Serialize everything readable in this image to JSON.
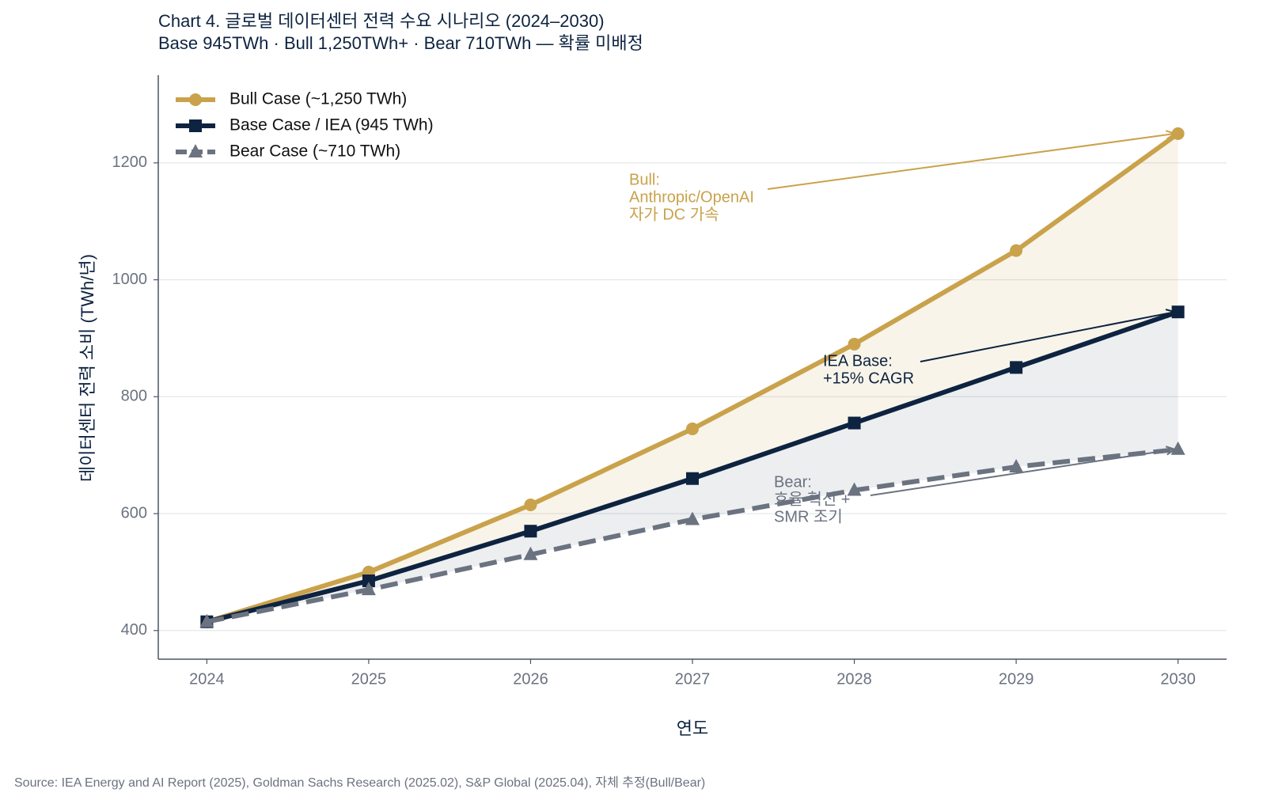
{
  "chart_data": {
    "type": "line",
    "title": "Chart 4. 글로벌 데이터센터 전력 수요 시나리오 (2024–2030)",
    "subtitle": "Base 945TWh · Bull 1,250TWh+ · Bear 710TWh — 확률 미배정",
    "x_label": "연도",
    "y_label": "데이터센터 전력 소비 (TWh/년)",
    "source": "Source: IEA Energy and AI Report (2025), Goldman Sachs Research (2025.02), S&P Global (2025.04), 자체 추정(Bull/Bear)",
    "x": [
      2024,
      2025,
      2026,
      2027,
      2028,
      2029,
      2030
    ],
    "xlim": [
      2023.7,
      2030.3
    ],
    "xticks": [
      2024,
      2025,
      2026,
      2027,
      2028,
      2029,
      2030
    ],
    "ylim": [
      351,
      1350
    ],
    "yticks": [
      400,
      600,
      800,
      1000,
      1200
    ],
    "grid": true,
    "legend": "upper left",
    "series": [
      {
        "name": "Bull Case (~1,250 TWh)",
        "color": "#c9a24b",
        "marker": "circle",
        "dash": "solid",
        "values": [
          415,
          500,
          615,
          745,
          890,
          1050,
          1250
        ]
      },
      {
        "name": "Base Case / IEA (945 TWh)",
        "color": "#0d2340",
        "marker": "square",
        "dash": "solid",
        "values": [
          415,
          485,
          570,
          660,
          755,
          850,
          945
        ]
      },
      {
        "name": "Bear Case (~710 TWh)",
        "color": "#6b7280",
        "marker": "triangle",
        "dash": "dashed",
        "values": [
          415,
          470,
          530,
          590,
          640,
          680,
          710
        ]
      }
    ],
    "annotations": [
      {
        "lines": [
          "Bull:",
          "Anthropic/OpenAI",
          "자가 DC 가속"
        ]
      },
      {
        "lines": [
          "IEA Base:",
          "+15% CAGR"
        ]
      },
      {
        "lines": [
          "Bear:",
          "효율 혁신 +",
          "SMR 조기"
        ]
      }
    ]
  }
}
